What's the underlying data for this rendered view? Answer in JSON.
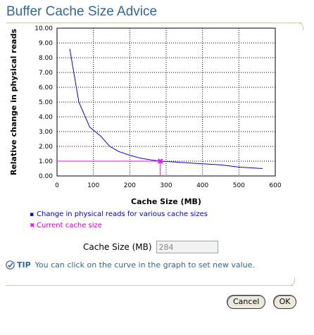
{
  "page": {
    "title": "Buffer Cache Size Advice"
  },
  "chart_data": {
    "type": "line",
    "xlabel": "Cache Size (MB)",
    "ylabel": "Relative change in physical reads",
    "xlim": [
      0,
      600
    ],
    "ylim": [
      0,
      10
    ],
    "x_ticks": [
      "0",
      "100",
      "200",
      "300",
      "400",
      "500",
      "600"
    ],
    "y_ticks": [
      "0.00",
      "1.00",
      "2.00",
      "3.00",
      "4.00",
      "5.00",
      "6.00",
      "7.00",
      "8.00",
      "9.00",
      "10.00"
    ],
    "grid": true,
    "series": [
      {
        "name": "Change in physical reads for various cache sizes",
        "color": "#0000ff",
        "x": [
          35,
          60,
          90,
          120,
          145,
          170,
          200,
          230,
          260,
          284,
          320,
          380,
          450,
          500,
          565
        ],
        "y": [
          8.6,
          5.0,
          3.3,
          2.7,
          2.0,
          1.65,
          1.4,
          1.2,
          1.08,
          1.0,
          0.95,
          0.85,
          0.75,
          0.6,
          0.5
        ]
      }
    ],
    "current": {
      "name": "Current cache size",
      "color": "#ff00ff",
      "x": 284,
      "y": 1.0
    }
  },
  "legend": {
    "items": [
      {
        "marker": "▪",
        "label": "Change in physical reads for various cache sizes",
        "color": "#0000ff"
      },
      {
        "marker": "✖",
        "label": "Current cache size",
        "color": "#ff00ff"
      }
    ]
  },
  "form": {
    "label": "Cache Size (MB)",
    "value": "284"
  },
  "tip": {
    "label": "TIP",
    "text": "You can click on the curve in the graph to set new value."
  },
  "buttons": {
    "cancel": "Cancel",
    "ok": "OK"
  }
}
